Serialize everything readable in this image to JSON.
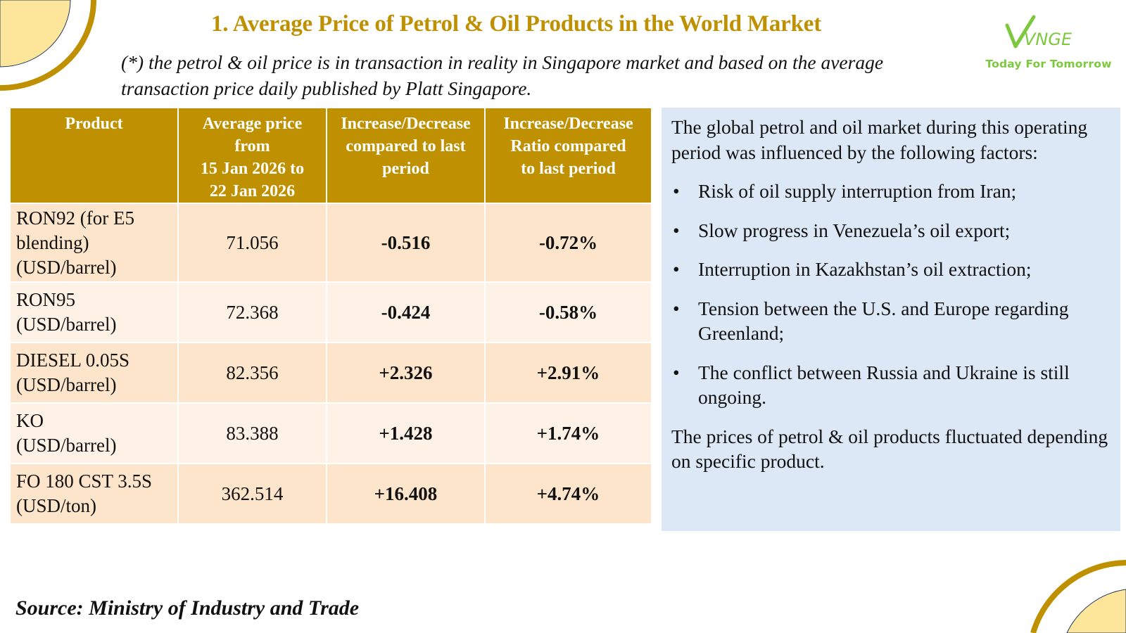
{
  "header": {
    "title": "1. Average Price of Petrol & Oil Products in the World Market",
    "note_line1": "(*) the petrol & oil price is in transaction in reality in Singapore market and based on the average",
    "note_line2": "transaction price daily published by Platt Singapore."
  },
  "logo": {
    "brand": "VNGE",
    "tagline": "Today For Tomorrow"
  },
  "colors": {
    "accent_gold": "#bf9000",
    "decrease_red": "#ee1b1b",
    "increase_green": "#1bb04a",
    "panel_blue": "#dce8f5",
    "row_peach": "#fde5cb",
    "logo_green": "#7ec83f"
  },
  "table": {
    "columns": [
      "Product",
      "Average price from 15 Jan 2026 to 22 Jan 2026",
      "Increase/Decrease compared to last period",
      "Increase/Decrease Ratio compared to last period"
    ],
    "column_lines": [
      [
        "Product"
      ],
      [
        "Average price",
        "from",
        "15 Jan 2026 to",
        "22 Jan 2026"
      ],
      [
        "Increase/Decrease",
        "compared to last",
        "period"
      ],
      [
        "Increase/Decrease",
        "Ratio compared",
        "to last period"
      ]
    ],
    "rows": [
      {
        "product_lines": [
          "RON92 (for E5",
          "blending)",
          "(USD/barrel)"
        ],
        "avg_price": "71.056",
        "change": "-0.516",
        "ratio": "-0.72%",
        "direction": "decrease"
      },
      {
        "product_lines": [
          "RON95",
          "(USD/barrel)"
        ],
        "avg_price": "72.368",
        "change": "-0.424",
        "ratio": "-0.58%",
        "direction": "decrease"
      },
      {
        "product_lines": [
          "DIESEL 0.05S",
          "(USD/barrel)"
        ],
        "avg_price": "82.356",
        "change": "+2.326",
        "ratio": "+2.91%",
        "direction": "increase"
      },
      {
        "product_lines": [
          "KO",
          "(USD/barrel)"
        ],
        "avg_price": "83.388",
        "change": "+1.428",
        "ratio": "+1.74%",
        "direction": "increase"
      },
      {
        "product_lines": [
          "FO 180 CST 3.5S",
          "(USD/ton)"
        ],
        "avg_price": "362.514",
        "change": "+16.408",
        "ratio": "+4.74%",
        "direction": "increase"
      }
    ]
  },
  "panel": {
    "intro": "The global petrol and oil market during this operating period was influenced by the following factors:",
    "bullet_glyph": "•",
    "factors": [
      "Risk of oil supply interruption from Iran;",
      "Slow progress in Venezuela’s oil export;",
      "Interruption in Kazakhstan’s oil extraction;",
      "Tension between the U.S. and Europe regarding Greenland;",
      "The conflict between Russia and Ukraine is still ongoing."
    ],
    "closing": "The prices of petrol & oil products fluctuated depending on specific product."
  },
  "footer": {
    "source": "Source: Ministry of Industry and Trade"
  }
}
